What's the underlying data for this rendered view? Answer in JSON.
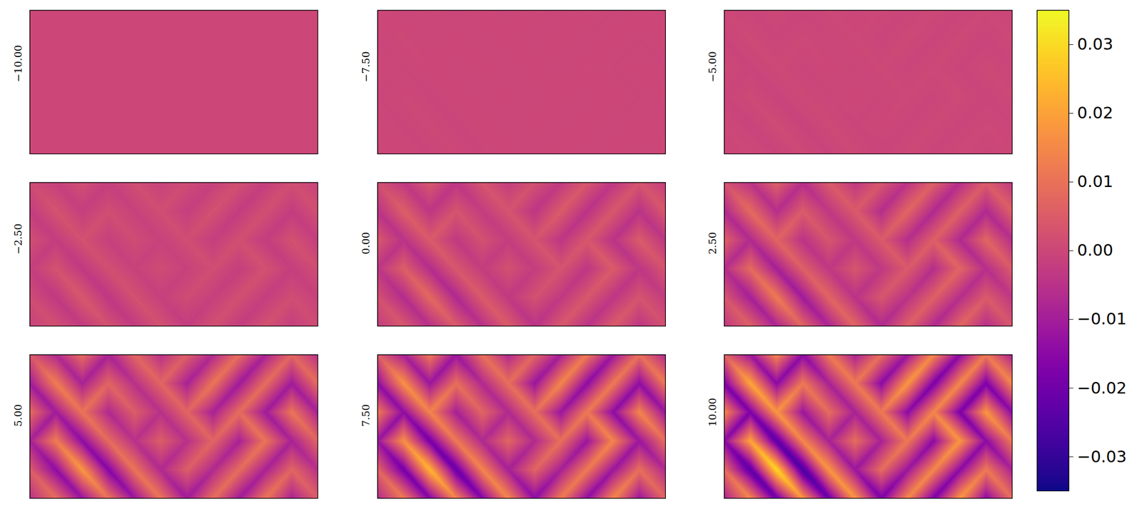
{
  "chart_data": {
    "type": "heatmap",
    "color": "plasma",
    "tick_labels": false,
    "colorbar": {
      "range": [
        -0.035,
        0.035
      ],
      "ticks": [
        {
          "value": -0.03,
          "label": "−0.03"
        },
        {
          "value": -0.02,
          "label": "−0.02"
        },
        {
          "value": -0.01,
          "label": "−0.01"
        },
        {
          "value": 0,
          "label": "0.00"
        },
        {
          "value": 0.01,
          "label": "0.01"
        },
        {
          "value": 0.02,
          "label": "0.02"
        },
        {
          "value": 0.03,
          "label": "0.03"
        }
      ]
    },
    "panels": [
      {
        "label": "−10.00",
        "cells": [
          [
            0,
            0,
            0,
            0,
            0,
            0,
            0,
            0,
            0,
            0,
            0,
            0
          ],
          [
            0,
            0,
            0,
            0,
            0,
            0,
            0,
            0,
            0,
            0,
            0,
            0
          ],
          [
            0,
            0,
            0,
            0,
            0,
            0,
            0,
            0,
            0,
            0,
            0,
            0
          ],
          [
            0,
            0,
            0,
            0,
            0,
            0,
            0,
            0,
            0,
            0,
            0,
            0
          ],
          [
            0,
            0,
            0,
            0,
            0,
            0,
            0,
            0,
            0,
            0,
            0,
            0
          ],
          [
            0,
            0,
            0,
            0,
            0,
            0,
            0,
            0,
            0,
            0,
            0,
            0
          ]
        ]
      },
      {
        "label": "−7.50",
        "cells": [
          [
            0.0001,
            -0.0002,
            0.0003,
            -0.0003,
            0.0002,
            -0.0002,
            0.0002,
            -0.0002,
            0.0003,
            -0.0003,
            0.0002,
            -0.0002
          ],
          [
            -0.0003,
            0.0004,
            -0.0003,
            0.0002,
            -0.0002,
            0.0002,
            -0.0003,
            0.0003,
            -0.0003,
            0.0003,
            -0.0003,
            0.0003
          ],
          [
            0.0003,
            -0.0003,
            0.0003,
            -0.0002,
            0.0002,
            -0.0002,
            0.0002,
            -0.0003,
            0.0003,
            -0.0003,
            0.0003,
            -0.0003
          ],
          [
            -0.0003,
            0.0004,
            -0.0004,
            0.0003,
            -0.0002,
            0.0002,
            -0.0002,
            0.0002,
            -0.0003,
            0.0003,
            -0.0003,
            0.0002
          ],
          [
            0.0002,
            -0.0004,
            0.0005,
            -0.0005,
            0.0003,
            -0.0002,
            0.0002,
            -0.0002,
            0.0003,
            -0.0003,
            0.0002,
            -0.0002
          ],
          [
            -0.0002,
            0.0003,
            -0.0004,
            0.0003,
            -0.0004,
            0.0003,
            -0.0003,
            0.0003,
            -0.0003,
            0.0003,
            -0.0003,
            0.0002
          ]
        ]
      },
      {
        "label": "−5.00",
        "cells": [
          [
            0.0002,
            -0.0004,
            0.0005,
            -0.0005,
            0.0004,
            -0.0003,
            0.0003,
            -0.0004,
            0.0005,
            -0.0005,
            0.0004,
            -0.0003
          ],
          [
            -0.0006,
            0.0007,
            -0.0005,
            0.0004,
            -0.0003,
            0.0004,
            -0.0005,
            0.0006,
            -0.0006,
            0.0005,
            -0.0006,
            0.0005
          ],
          [
            0.0005,
            -0.0006,
            0.0006,
            -0.0004,
            0.0003,
            -0.0003,
            0.0004,
            -0.0005,
            0.0005,
            -0.0006,
            0.0006,
            -0.0005
          ],
          [
            -0.0005,
            0.0007,
            -0.0008,
            0.0005,
            -0.0003,
            0.0003,
            -0.0003,
            0.0004,
            -0.0005,
            0.0006,
            -0.0005,
            0.0004
          ],
          [
            0.0003,
            -0.0008,
            0.001,
            -0.0009,
            0.0006,
            -0.0004,
            0.0003,
            -0.0004,
            0.0005,
            -0.0005,
            0.0004,
            -0.0003
          ],
          [
            -0.0003,
            0.0005,
            -0.0007,
            0.0006,
            -0.0007,
            0.0006,
            -0.0006,
            0.0005,
            -0.0006,
            0.0006,
            -0.0005,
            0.0003
          ]
        ]
      },
      {
        "label": "−2.50",
        "cells": [
          [
            0.0008,
            -0.0016,
            0.002,
            -0.002,
            0.0016,
            -0.0012,
            0.0012,
            -0.0016,
            0.002,
            -0.002,
            0.0016,
            -0.0012
          ],
          [
            -0.0024,
            0.0028,
            -0.002,
            0.0016,
            -0.0012,
            0.0016,
            -0.002,
            0.0024,
            -0.0024,
            0.002,
            -0.0024,
            0.002
          ],
          [
            0.002,
            -0.0024,
            0.0024,
            -0.0016,
            0.0012,
            -0.0012,
            0.0016,
            -0.002,
            0.002,
            -0.0024,
            0.0024,
            -0.002
          ],
          [
            -0.002,
            0.0028,
            -0.0032,
            0.002,
            -0.0012,
            0.0012,
            -0.0012,
            0.0016,
            -0.002,
            0.0024,
            -0.002,
            0.0016
          ],
          [
            0.0012,
            -0.0032,
            0.004,
            -0.0036,
            0.0024,
            -0.0016,
            0.0012,
            -0.0016,
            0.002,
            -0.002,
            0.0016,
            -0.0012
          ],
          [
            -0.0012,
            0.002,
            -0.0028,
            0.0024,
            -0.0028,
            0.0024,
            -0.0024,
            0.002,
            -0.0024,
            0.0024,
            -0.002,
            0.0012
          ]
        ]
      },
      {
        "label": "0.00",
        "cells": [
          [
            0.0016,
            -0.0032,
            0.004,
            -0.004,
            0.0032,
            -0.0024,
            0.0024,
            -0.0032,
            0.004,
            -0.004,
            0.0032,
            -0.0024
          ],
          [
            -0.0048,
            0.0056,
            -0.004,
            0.0032,
            -0.0024,
            0.0032,
            -0.004,
            0.0048,
            -0.0048,
            0.004,
            -0.0048,
            0.004
          ],
          [
            0.004,
            -0.0048,
            0.0048,
            -0.0032,
            0.0024,
            -0.0024,
            0.0032,
            -0.004,
            0.004,
            -0.0048,
            0.0048,
            -0.004
          ],
          [
            -0.004,
            0.0056,
            -0.0064,
            0.004,
            -0.0024,
            0.0024,
            -0.0024,
            0.0032,
            -0.004,
            0.0048,
            -0.004,
            0.0032
          ],
          [
            0.0024,
            -0.0064,
            0.008,
            -0.0072,
            0.0048,
            -0.0032,
            0.0024,
            -0.0032,
            0.004,
            -0.004,
            0.0032,
            -0.0024
          ],
          [
            -0.0024,
            0.004,
            -0.0056,
            0.0048,
            -0.0056,
            0.0048,
            -0.0048,
            0.004,
            -0.0048,
            0.0048,
            -0.004,
            0.0024
          ]
        ]
      },
      {
        "label": "2.50",
        "cells": [
          [
            0.0024,
            -0.0048,
            0.006,
            -0.006,
            0.0048,
            -0.0036,
            0.0036,
            -0.0048,
            0.006,
            -0.006,
            0.0048,
            -0.0036
          ],
          [
            -0.0072,
            0.0084,
            -0.006,
            0.0048,
            -0.0036,
            0.0048,
            -0.006,
            0.0072,
            -0.0072,
            0.006,
            -0.0072,
            0.006
          ],
          [
            0.006,
            -0.0072,
            0.0072,
            -0.0048,
            0.0036,
            -0.0036,
            0.0048,
            -0.006,
            0.006,
            -0.0072,
            0.0072,
            -0.006
          ],
          [
            -0.006,
            0.0084,
            -0.0096,
            0.006,
            -0.0036,
            0.0036,
            -0.0036,
            0.0048,
            -0.006,
            0.0072,
            -0.006,
            0.0048
          ],
          [
            0.0036,
            -0.0096,
            0.012,
            -0.0108,
            0.0072,
            -0.0048,
            0.0036,
            -0.0048,
            0.006,
            -0.006,
            0.0048,
            -0.0036
          ],
          [
            -0.0036,
            0.006,
            -0.0084,
            0.0072,
            -0.0084,
            0.0072,
            -0.0072,
            0.006,
            -0.0072,
            0.0072,
            -0.006,
            0.0036
          ]
        ]
      },
      {
        "label": "5.00",
        "cells": [
          [
            0.0036,
            -0.0072,
            0.009,
            -0.009,
            0.0072,
            -0.0054,
            0.0054,
            -0.0072,
            0.009,
            -0.009,
            0.0072,
            -0.0054
          ],
          [
            -0.0108,
            0.0126,
            -0.009,
            0.0072,
            -0.0054,
            0.0072,
            -0.009,
            0.0108,
            -0.0108,
            0.009,
            -0.0108,
            0.009
          ],
          [
            0.009,
            -0.0108,
            0.0108,
            -0.0072,
            0.0054,
            -0.0054,
            0.0072,
            -0.009,
            0.009,
            -0.0108,
            0.0108,
            -0.009
          ],
          [
            -0.009,
            0.0126,
            -0.0144,
            0.009,
            -0.0054,
            0.0054,
            -0.0054,
            0.0072,
            -0.009,
            0.0108,
            -0.009,
            0.0072
          ],
          [
            0.0054,
            -0.0144,
            0.018,
            -0.0162,
            0.0108,
            -0.0072,
            0.0054,
            -0.0072,
            0.009,
            -0.009,
            0.0072,
            -0.0054
          ],
          [
            -0.0054,
            0.009,
            -0.0126,
            0.0108,
            -0.0126,
            0.0108,
            -0.0108,
            0.009,
            -0.0108,
            0.0108,
            -0.009,
            0.0054
          ]
        ]
      },
      {
        "label": "7.50",
        "cells": [
          [
            0.0048,
            -0.0096,
            0.012,
            -0.012,
            0.0096,
            -0.0072,
            0.0072,
            -0.0096,
            0.012,
            -0.012,
            0.0096,
            -0.0072
          ],
          [
            -0.0144,
            0.0168,
            -0.012,
            0.0096,
            -0.0072,
            0.0096,
            -0.012,
            0.0144,
            -0.0144,
            0.012,
            -0.0144,
            0.012
          ],
          [
            0.012,
            -0.0144,
            0.0144,
            -0.0096,
            0.0072,
            -0.0072,
            0.0096,
            -0.012,
            0.012,
            -0.0144,
            0.0144,
            -0.012
          ],
          [
            -0.012,
            0.0168,
            -0.0192,
            0.012,
            -0.0072,
            0.0072,
            -0.0072,
            0.0096,
            -0.012,
            0.0144,
            -0.012,
            0.0096
          ],
          [
            0.0072,
            -0.0192,
            0.024,
            -0.0216,
            0.0144,
            -0.0096,
            0.0072,
            -0.0096,
            0.012,
            -0.012,
            0.0096,
            -0.0072
          ],
          [
            -0.0072,
            0.012,
            -0.0168,
            0.0144,
            -0.0168,
            0.0144,
            -0.0144,
            0.012,
            -0.0144,
            0.0144,
            -0.012,
            0.0072
          ]
        ]
      },
      {
        "label": "10.00",
        "cells": [
          [
            0.006,
            -0.012,
            0.015,
            -0.015,
            0.012,
            -0.009,
            0.009,
            -0.012,
            0.015,
            -0.015,
            0.012,
            -0.009
          ],
          [
            -0.018,
            0.021,
            -0.015,
            0.012,
            -0.009,
            0.012,
            -0.015,
            0.018,
            -0.018,
            0.015,
            -0.018,
            0.015
          ],
          [
            0.015,
            -0.018,
            0.018,
            -0.012,
            0.009,
            -0.009,
            0.012,
            -0.015,
            0.015,
            -0.018,
            0.018,
            -0.015
          ],
          [
            -0.015,
            0.021,
            -0.024,
            0.015,
            -0.009,
            0.009,
            -0.009,
            0.012,
            -0.015,
            0.018,
            -0.015,
            0.012
          ],
          [
            0.009,
            -0.024,
            0.03,
            -0.027,
            0.018,
            -0.012,
            0.009,
            -0.012,
            0.015,
            -0.015,
            0.012,
            -0.009
          ],
          [
            -0.009,
            0.015,
            -0.021,
            0.018,
            -0.021,
            0.018,
            -0.018,
            0.015,
            -0.018,
            0.018,
            -0.015,
            0.009
          ]
        ]
      }
    ]
  }
}
